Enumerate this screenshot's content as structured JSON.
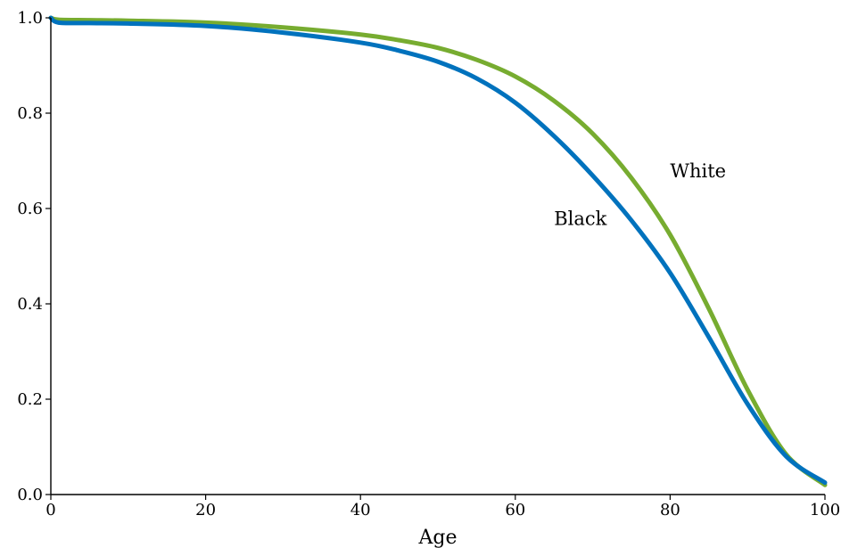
{
  "chart_data": {
    "type": "line",
    "title": "",
    "xlabel": "Age",
    "ylabel": "",
    "xlim": [
      0,
      100
    ],
    "ylim": [
      0,
      1.0
    ],
    "x_ticks": [
      0,
      20,
      40,
      60,
      80,
      100
    ],
    "x_tick_labels": [
      "0",
      "20",
      "40",
      "60",
      "80",
      "100"
    ],
    "y_ticks": [
      0,
      0.2,
      0.4,
      0.6,
      0.8,
      1.0
    ],
    "y_tick_labels": [
      "0.0",
      "0.2",
      "0.4",
      "0.6",
      "0.8",
      "1.0"
    ],
    "grid": false,
    "series": [
      {
        "name": "White",
        "color": "#77ac30",
        "label_at": [
          80,
          0.665
        ],
        "x": [
          0,
          1,
          5,
          10,
          20,
          30,
          40,
          45,
          50,
          55,
          60,
          65,
          70,
          75,
          80,
          85,
          90,
          95,
          100
        ],
        "y": [
          1.0,
          0.996,
          0.995,
          0.994,
          0.99,
          0.98,
          0.965,
          0.953,
          0.937,
          0.912,
          0.877,
          0.826,
          0.757,
          0.664,
          0.545,
          0.39,
          0.22,
          0.084,
          0.02
        ]
      },
      {
        "name": "Black",
        "color": "#0072bd",
        "label_at": [
          65,
          0.565
        ],
        "x": [
          0,
          1,
          5,
          10,
          20,
          30,
          40,
          45,
          50,
          55,
          60,
          65,
          70,
          75,
          80,
          85,
          90,
          95,
          100
        ],
        "y": [
          1.0,
          0.99,
          0.989,
          0.988,
          0.983,
          0.969,
          0.948,
          0.931,
          0.908,
          0.873,
          0.822,
          0.752,
          0.669,
          0.575,
          0.465,
          0.33,
          0.19,
          0.08,
          0.025
        ]
      }
    ]
  }
}
